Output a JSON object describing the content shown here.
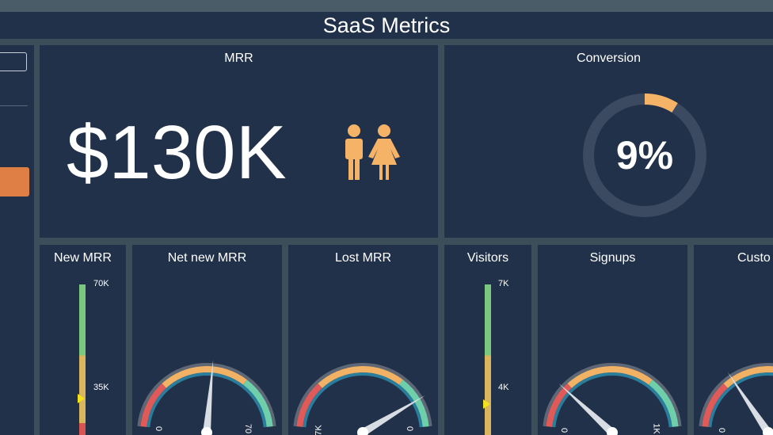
{
  "title": "SaaS Metrics",
  "colors": {
    "panel_bg": "#22314a",
    "page_bg": "#3d4e5b",
    "accent_orange": "#f5b368",
    "button_orange": "#e07f45",
    "gauge_red": "#e05a5a",
    "gauge_yellow": "#f2b266",
    "gauge_teal": "#6ecfaa",
    "bar_green": "#79c97f",
    "bar_yellow": "#d9b55b",
    "bar_red": "#d9534f"
  },
  "mrr": {
    "title": "MRR",
    "value": "$130K",
    "icon": "people-icon"
  },
  "conversion": {
    "title": "Conversion",
    "value": "9%",
    "fraction": 0.09
  },
  "new_mrr": {
    "title": "New MRR",
    "max_label": "70K",
    "mid_label": "35K",
    "marker_fraction": 0.5
  },
  "net_new_mrr": {
    "title": "Net new MRR",
    "min_label": "0",
    "max_label": "70",
    "needle_fraction": 0.53
  },
  "lost_mrr": {
    "title": "Lost MRR",
    "min_label": "7K",
    "max_label": "0",
    "needle_fraction": 0.85
  },
  "visitors": {
    "title": "Visitors",
    "max_label": "7K",
    "mid_label": "4K",
    "marker_fraction": 0.5
  },
  "signups": {
    "title": "Signups",
    "min_label": "0",
    "max_label": "1K",
    "needle_fraction": 0.22
  },
  "customers": {
    "title": "Custo",
    "min_label": "0",
    "needle_fraction": 0.3
  }
}
